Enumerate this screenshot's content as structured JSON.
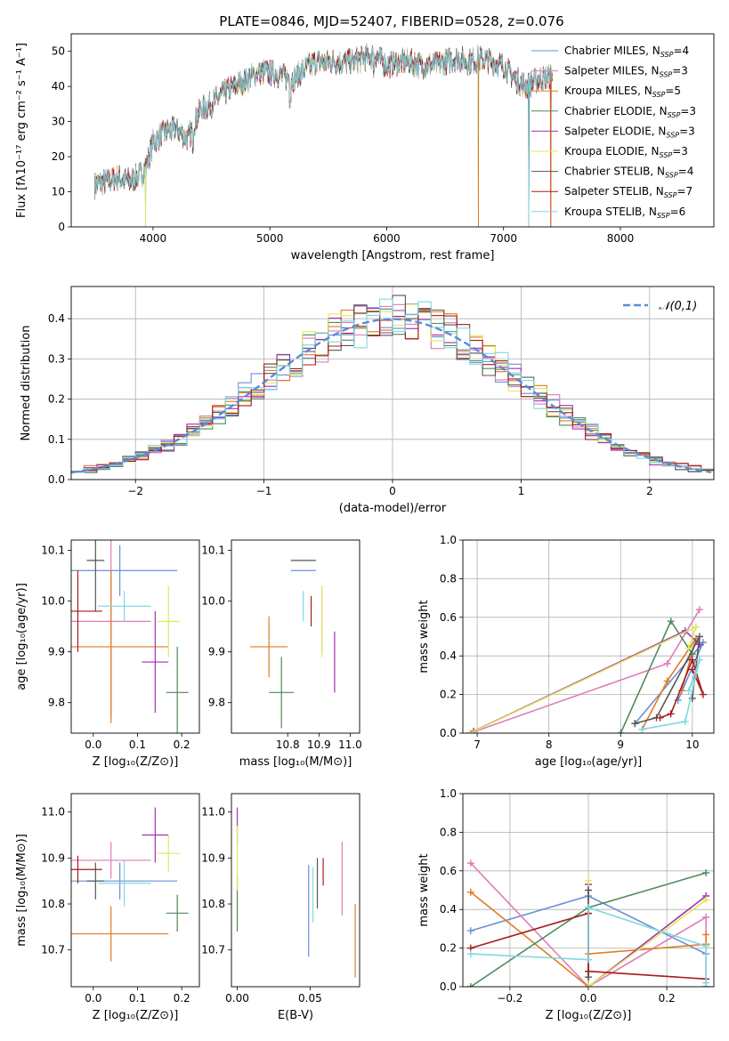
{
  "title": "PLATE=0846, MJD=52407, FIBERID=0528, z=0.076",
  "colors": {
    "Chabrier MILES": "#6a8fd6",
    "Salpeter MILES": "#e07cb8",
    "Kroupa MILES": "#e07b22",
    "Chabrier ELODIE": "#4f8a5b",
    "Salpeter ELODIE": "#a032b4",
    "Kroupa ELODIE": "#dfe85a",
    "Chabrier STELIB": "#555555",
    "Salpeter STELIB": "#a51c1c",
    "Kroupa STELIB": "#7fd8e0"
  },
  "chart_data": [
    {
      "id": "spectrum",
      "type": "line",
      "title": "PLATE=0846, MJD=52407, FIBERID=0528, z=0.076",
      "xlabel": "wavelength [Angstrom, rest frame]",
      "ylabel": "Flux [fλ10⁻¹⁷ erg cm⁻² s⁻¹ A⁻¹]",
      "xlim": [
        3300,
        8800
      ],
      "ylim": [
        0,
        55
      ],
      "xticks": [
        4000,
        5000,
        6000,
        7000,
        8000
      ],
      "yticks": [
        0,
        10,
        20,
        30,
        40,
        50
      ],
      "legend_position": "top-right",
      "legend": [
        {
          "model": "Chabrier MILES",
          "nssp": "4"
        },
        {
          "model": "Salpeter MILES",
          "nssp": "3"
        },
        {
          "model": "Kroupa MILES",
          "nssp": "5"
        },
        {
          "model": "Chabrier ELODIE",
          "nssp": "3"
        },
        {
          "model": "Salpeter ELODIE",
          "nssp": "3"
        },
        {
          "model": "Kroupa ELODIE",
          "nssp": "3"
        },
        {
          "model": "Chabrier STELIB",
          "nssp": "4"
        },
        {
          "model": "Salpeter STELIB",
          "nssp": "7"
        },
        {
          "model": "Kroupa STELIB",
          "nssp": "6"
        }
      ],
      "continuum_x": [
        3500,
        3600,
        3700,
        3800,
        3900,
        3950,
        4000,
        4100,
        4200,
        4300,
        4400,
        4500,
        4600,
        4700,
        4800,
        4900,
        5000,
        5100,
        5200,
        5300,
        5400,
        5500,
        5600,
        5700,
        5800,
        5900,
        6000,
        6100,
        6200,
        6300,
        6400,
        6500,
        6600,
        6700,
        6800,
        6900,
        7000,
        7100,
        7200,
        7300,
        7400
      ],
      "continuum_y": [
        12,
        13,
        14,
        13,
        15,
        18,
        24,
        27,
        28,
        25,
        33,
        35,
        38,
        40,
        42,
        44,
        44,
        43,
        42,
        45,
        47,
        47,
        47,
        47,
        48,
        49,
        46,
        47,
        47,
        46,
        46,
        47,
        48,
        47,
        48,
        47,
        46,
        42,
        40,
        42,
        43
      ],
      "dips": [
        {
          "x": 3935,
          "to": 0
        },
        {
          "x": 6785,
          "to": 0
        },
        {
          "x": 7215,
          "to": 0
        },
        {
          "x": 7405,
          "to": 0
        }
      ]
    },
    {
      "id": "residuals",
      "type": "histogram",
      "xlabel": "(data-model)/error",
      "ylabel": "Normed distribution",
      "xlim": [
        -2.5,
        2.5
      ],
      "ylim": [
        0,
        0.48
      ],
      "xticks": [
        -2,
        -1,
        0,
        1,
        2
      ],
      "yticks": [
        0.0,
        0.1,
        0.2,
        0.3,
        0.4
      ],
      "grid": true,
      "legend_position": "top-right",
      "reference_curve": {
        "name": "𝒩(0,1)",
        "mean": 0,
        "sigma": 1
      },
      "bin_width": 0.1
    },
    {
      "id": "age-vs-Z",
      "type": "errorbar",
      "xlabel": "Z [log₁₀(Z/Z⊙)]",
      "ylabel": "age  [log₁₀(age/yr)]",
      "xlim": [
        -0.05,
        0.24
      ],
      "ylim": [
        9.74,
        10.12
      ],
      "xticks": [
        0.0,
        0.1,
        0.2
      ],
      "yticks": [
        9.8,
        9.9,
        10.0,
        10.1
      ],
      "points": [
        {
          "model": "Chabrier MILES",
          "x": 0.06,
          "xerr": 0.13,
          "y": 10.06,
          "yerr": 0.05
        },
        {
          "model": "Salpeter MILES",
          "x": 0.04,
          "xerr": 0.09,
          "y": 9.96,
          "yerr": 0.19
        },
        {
          "model": "Kroupa MILES",
          "x": 0.04,
          "xerr": 0.13,
          "y": 9.91,
          "yerr": 0.15
        },
        {
          "model": "Chabrier ELODIE",
          "x": 0.19,
          "xerr": 0.025,
          "y": 9.82,
          "yerr": 0.09
        },
        {
          "model": "Salpeter ELODIE",
          "x": 0.14,
          "xerr": 0.03,
          "y": 9.88,
          "yerr": 0.1
        },
        {
          "model": "Kroupa ELODIE",
          "x": 0.17,
          "xerr": 0.025,
          "y": 9.96,
          "yerr": 0.07
        },
        {
          "model": "Chabrier STELIB",
          "x": 0.005,
          "xerr": 0.02,
          "y": 10.08,
          "yerr": 0.1
        },
        {
          "model": "Salpeter STELIB",
          "x": -0.035,
          "xerr": 0.055,
          "y": 9.98,
          "yerr": 0.08
        },
        {
          "model": "Kroupa STELIB",
          "x": 0.07,
          "xerr": 0.06,
          "y": 9.99,
          "yerr": 0.03
        }
      ]
    },
    {
      "id": "age-vs-mass",
      "type": "errorbar",
      "xlabel": "mass [log₁₀(M/M⊙)]",
      "ylabel": "",
      "xlim": [
        10.62,
        11.03
      ],
      "ylim": [
        9.74,
        10.12
      ],
      "xticks": [
        10.8,
        10.9,
        11.0
      ],
      "yticks": [
        9.8,
        9.9,
        10.0,
        10.1
      ],
      "points": [
        {
          "model": "Chabrier MILES",
          "x": 10.85,
          "xerr": 0.04,
          "y": 10.06,
          "yerr": 0.0
        },
        {
          "model": "Salpeter MILES",
          "x": 10.91,
          "xerr": 0.0,
          "y": 9.96,
          "yerr": 0.06
        },
        {
          "model": "Kroupa MILES",
          "x": 10.74,
          "xerr": 0.06,
          "y": 9.91,
          "yerr": 0.06
        },
        {
          "model": "Chabrier ELODIE",
          "x": 10.78,
          "xerr": 0.04,
          "y": 9.82,
          "yerr": 0.07
        },
        {
          "model": "Salpeter ELODIE",
          "x": 10.95,
          "xerr": 0.0,
          "y": 9.88,
          "yerr": 0.06
        },
        {
          "model": "Kroupa ELODIE",
          "x": 10.91,
          "xerr": 0.0,
          "y": 9.96,
          "yerr": 0.07
        },
        {
          "model": "Chabrier STELIB",
          "x": 10.85,
          "xerr": 0.04,
          "y": 10.08,
          "yerr": 0.0
        },
        {
          "model": "Salpeter STELIB",
          "x": 10.875,
          "xerr": 0.0,
          "y": 9.98,
          "yerr": 0.03
        },
        {
          "model": "Kroupa STELIB",
          "x": 10.85,
          "xerr": 0.0,
          "y": 9.99,
          "yerr": 0.03
        }
      ]
    },
    {
      "id": "weight-vs-age",
      "type": "line",
      "xlabel": "age  [log₁₀(age/yr)]",
      "ylabel": "mass weight",
      "xlim": [
        6.8,
        10.3
      ],
      "ylim": [
        0,
        1
      ],
      "xticks": [
        7,
        8,
        9,
        10
      ],
      "yticks": [
        0.0,
        0.2,
        0.4,
        0.6,
        0.8,
        1.0
      ],
      "grid": true,
      "series": [
        {
          "model": "Chabrier MILES",
          "x": [
            9.2,
            10.15,
            9.8
          ],
          "y": [
            0.05,
            0.47,
            0.17
          ]
        },
        {
          "model": "Salpeter MILES",
          "x": [
            6.9,
            9.65,
            10.1
          ],
          "y": [
            0.0,
            0.36,
            0.64
          ]
        },
        {
          "model": "Kroupa MILES",
          "x": [
            9.3,
            9.65,
            10.05,
            9.85
          ],
          "y": [
            0.02,
            0.27,
            0.49,
            0.22
          ]
        },
        {
          "model": "Chabrier ELODIE",
          "x": [
            9.0,
            9.7,
            10.0
          ],
          "y": [
            0.0,
            0.58,
            0.41
          ]
        },
        {
          "model": "Salpeter ELODIE",
          "x": [
            6.95,
            9.9,
            10.1
          ],
          "y": [
            0.01,
            0.53,
            0.46
          ]
        },
        {
          "model": "Kroupa ELODIE",
          "x": [
            6.9,
            10.05,
            9.95
          ],
          "y": [
            0.0,
            0.55,
            0.44
          ]
        },
        {
          "model": "Chabrier STELIB",
          "x": [
            9.2,
            9.5,
            10.1,
            10.0
          ],
          "y": [
            0.05,
            0.08,
            0.5,
            0.18
          ]
        },
        {
          "model": "Salpeter STELIB",
          "x": [
            9.55,
            9.7,
            10.0,
            10.15,
            10.0
          ],
          "y": [
            0.08,
            0.1,
            0.38,
            0.2,
            0.33
          ]
        },
        {
          "model": "Kroupa STELIB",
          "x": [
            9.3,
            9.9,
            10.1,
            9.95
          ],
          "y": [
            0.02,
            0.06,
            0.38,
            0.22
          ]
        }
      ]
    },
    {
      "id": "mass-vs-Z",
      "type": "errorbar",
      "xlabel": "Z [log₁₀(Z/Z⊙)]",
      "ylabel": "mass [log₁₀(M/M⊙)]",
      "xlim": [
        -0.05,
        0.24
      ],
      "ylim": [
        10.62,
        11.04
      ],
      "xticks": [
        0.0,
        0.1,
        0.2
      ],
      "yticks": [
        10.7,
        10.8,
        10.9,
        11.0
      ],
      "points": [
        {
          "model": "Chabrier MILES",
          "x": 0.06,
          "xerr": 0.13,
          "y": 10.85,
          "yerr": 0.04
        },
        {
          "model": "Salpeter MILES",
          "x": 0.04,
          "xerr": 0.09,
          "y": 10.895,
          "yerr": 0.04
        },
        {
          "model": "Kroupa MILES",
          "x": 0.04,
          "xerr": 0.13,
          "y": 10.735,
          "yerr": 0.06
        },
        {
          "model": "Chabrier ELODIE",
          "x": 0.19,
          "xerr": 0.025,
          "y": 10.78,
          "yerr": 0.04
        },
        {
          "model": "Salpeter ELODIE",
          "x": 0.14,
          "xerr": 0.03,
          "y": 10.95,
          "yerr": 0.06
        },
        {
          "model": "Kroupa ELODIE",
          "x": 0.17,
          "xerr": 0.025,
          "y": 10.91,
          "yerr": 0.04
        },
        {
          "model": "Chabrier STELIB",
          "x": 0.005,
          "xerr": 0.02,
          "y": 10.85,
          "yerr": 0.04
        },
        {
          "model": "Salpeter STELIB",
          "x": -0.035,
          "xerr": 0.055,
          "y": 10.875,
          "yerr": 0.03
        },
        {
          "model": "Kroupa STELIB",
          "x": 0.07,
          "xerr": 0.06,
          "y": 10.845,
          "yerr": 0.05
        }
      ]
    },
    {
      "id": "mass-vs-ebv",
      "type": "errorbar",
      "xlabel": "E(B-V)",
      "ylabel": "",
      "xlim": [
        -0.004,
        0.084
      ],
      "ylim": [
        10.62,
        11.04
      ],
      "xticks": [
        0.0,
        0.05
      ],
      "yticks": [
        10.7,
        10.8,
        10.9,
        11.0
      ],
      "points": [
        {
          "model": "Chabrier MILES",
          "x": 0.049,
          "xerr": 0,
          "y": 10.785,
          "yerr": 0.1
        },
        {
          "model": "Salpeter MILES",
          "x": 0.072,
          "xerr": 0,
          "y": 10.855,
          "yerr": 0.08
        },
        {
          "model": "Kroupa MILES",
          "x": 0.081,
          "xerr": 0,
          "y": 10.72,
          "yerr": 0.08
        },
        {
          "model": "Chabrier ELODIE",
          "x": 0.0,
          "xerr": 0,
          "y": 10.8,
          "yerr": 0.06
        },
        {
          "model": "Salpeter ELODIE",
          "x": 0.0,
          "xerr": 0,
          "y": 10.97,
          "yerr": 0.04
        },
        {
          "model": "Kroupa ELODIE",
          "x": 0.0,
          "xerr": 0,
          "y": 10.9,
          "yerr": 0.07
        },
        {
          "model": "Chabrier STELIB",
          "x": 0.055,
          "xerr": 0,
          "y": 10.845,
          "yerr": 0.055
        },
        {
          "model": "Salpeter STELIB",
          "x": 0.059,
          "xerr": 0,
          "y": 10.87,
          "yerr": 0.03
        },
        {
          "model": "Kroupa STELIB",
          "x": 0.052,
          "xerr": 0,
          "y": 10.82,
          "yerr": 0.06
        }
      ]
    },
    {
      "id": "weight-vs-Z",
      "type": "line",
      "xlabel": "Z [log₁₀(Z/Z⊙)]",
      "ylabel": "mass weight",
      "xlim": [
        -0.32,
        0.32
      ],
      "ylim": [
        0,
        1
      ],
      "xticks": [
        -0.2,
        0.0,
        0.2
      ],
      "yticks": [
        0.0,
        0.2,
        0.4,
        0.6,
        0.8,
        1.0
      ],
      "grid": true,
      "series": [
        {
          "model": "Chabrier MILES",
          "x": [
            -0.3,
            0.0,
            0.3,
            0.3
          ],
          "y": [
            0.29,
            0.47,
            0.17,
            0.0
          ]
        },
        {
          "model": "Salpeter MILES",
          "x": [
            -0.3,
            0.0,
            0.3,
            0.3
          ],
          "y": [
            0.64,
            0.0,
            0.36,
            0.0
          ]
        },
        {
          "model": "Kroupa MILES",
          "x": [
            -0.3,
            0.0,
            0.0,
            0.3,
            0.3
          ],
          "y": [
            0.49,
            0.0,
            0.17,
            0.22,
            0.27
          ]
        },
        {
          "model": "Chabrier ELODIE",
          "x": [
            -0.3,
            0.0,
            0.3
          ],
          "y": [
            0.0,
            0.41,
            0.59
          ]
        },
        {
          "model": "Salpeter ELODIE",
          "x": [
            0.0,
            0.0,
            0.3
          ],
          "y": [
            0.53,
            0.0,
            0.47
          ]
        },
        {
          "model": "Kroupa ELODIE",
          "x": [
            0.0,
            0.0,
            0.3
          ],
          "y": [
            0.55,
            0.0,
            0.45
          ]
        },
        {
          "model": "Chabrier STELIB",
          "x": [
            0.0,
            0.0,
            0.0,
            0.0
          ],
          "y": [
            0.5,
            0.05,
            0.08,
            0.38
          ]
        },
        {
          "model": "Salpeter STELIB",
          "x": [
            -0.3,
            0.0,
            0.0,
            0.3
          ],
          "y": [
            0.2,
            0.38,
            0.08,
            0.04
          ]
        },
        {
          "model": "Kroupa STELIB",
          "x": [
            -0.3,
            0.0,
            0.0,
            0.3,
            0.3
          ],
          "y": [
            0.17,
            0.14,
            0.41,
            0.21,
            0.02
          ]
        }
      ]
    }
  ]
}
